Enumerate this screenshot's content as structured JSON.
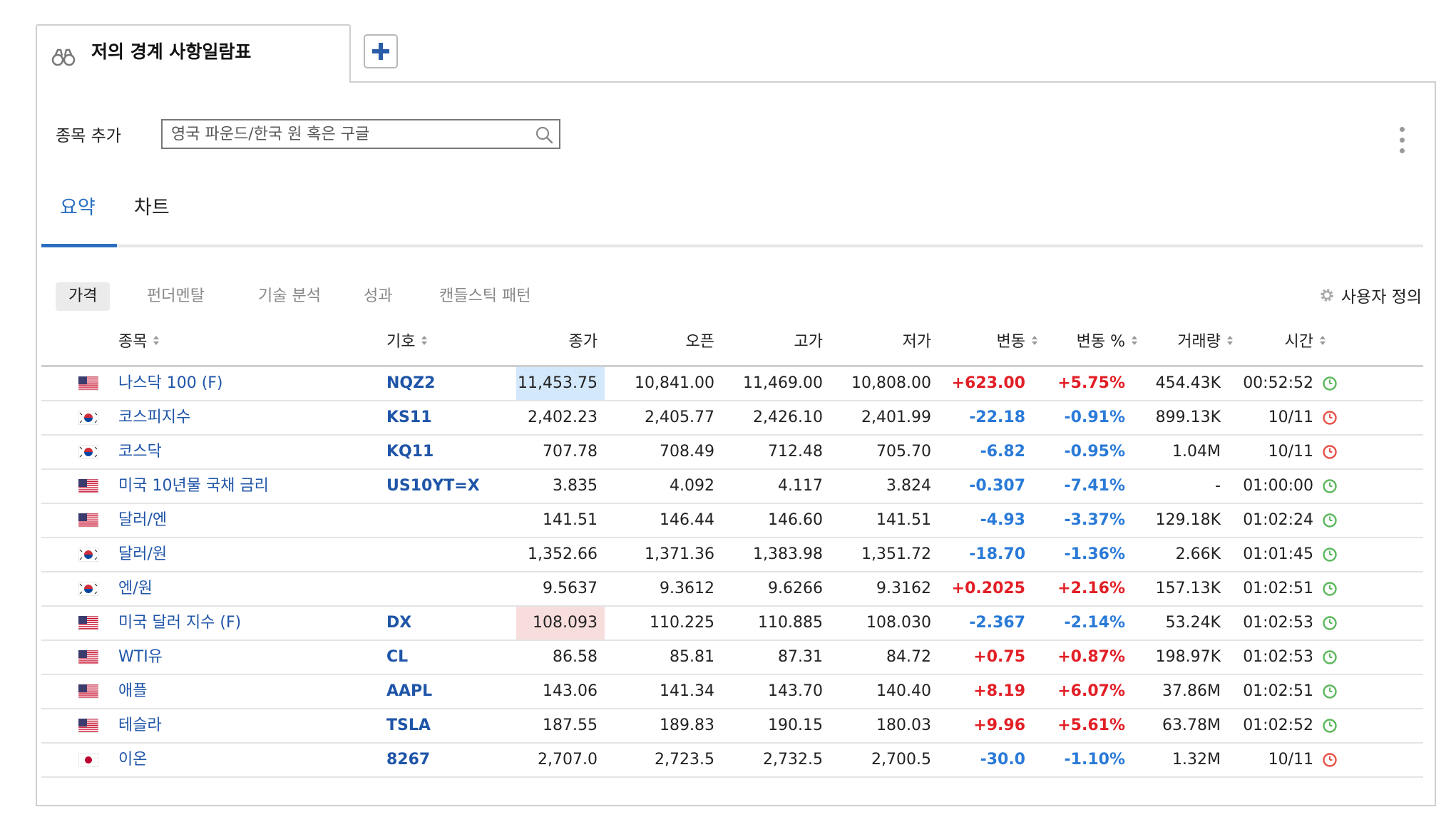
{
  "watchlist": {
    "tab_title": "저의 경계 사항일람표",
    "add_label": "종목 추가",
    "search_placeholder": "영국 파운드/한국 원 혹은 구글"
  },
  "main_tabs": [
    "요약",
    "차트"
  ],
  "sub_tabs": [
    "가격",
    "펀더멘탈",
    "기술 분석",
    "성과",
    "캔들스틱 패턴"
  ],
  "custom_label": "사용자 정의",
  "columns": {
    "name": "종목",
    "symbol": "기호",
    "close": "종가",
    "open": "오픈",
    "high": "고가",
    "low": "저가",
    "change": "변동",
    "change_pct": "변동 %",
    "volume": "거래량",
    "time": "시간"
  },
  "colors": {
    "accent": "#2a6ec0",
    "positive": "#e21f26",
    "negative": "#2a7ad8",
    "clock_green": "#5cb85c",
    "clock_red": "#e8534a"
  },
  "rows": [
    {
      "flag": "us",
      "name": "나스닥 100 (F)",
      "symbol": "NQZ2",
      "close": "11,453.75",
      "close_hl": "blue",
      "open": "10,841.00",
      "high": "11,469.00",
      "low": "10,808.00",
      "change": "+623.00",
      "change_pct": "+5.75%",
      "dir": "pos",
      "volume": "454.43K",
      "time": "00:52:52",
      "clock": "green"
    },
    {
      "flag": "kr",
      "name": "코스피지수",
      "symbol": "KS11",
      "close": "2,402.23",
      "close_hl": "",
      "open": "2,405.77",
      "high": "2,426.10",
      "low": "2,401.99",
      "change": "-22.18",
      "change_pct": "-0.91%",
      "dir": "neg",
      "volume": "899.13K",
      "time": "10/11",
      "clock": "red"
    },
    {
      "flag": "kr",
      "name": "코스닥",
      "symbol": "KQ11",
      "close": "707.78",
      "close_hl": "",
      "open": "708.49",
      "high": "712.48",
      "low": "705.70",
      "change": "-6.82",
      "change_pct": "-0.95%",
      "dir": "neg",
      "volume": "1.04M",
      "time": "10/11",
      "clock": "red"
    },
    {
      "flag": "us",
      "name": "미국 10년물 국채 금리",
      "symbol": "US10YT=X",
      "close": "3.835",
      "close_hl": "",
      "open": "4.092",
      "high": "4.117",
      "low": "3.824",
      "change": "-0.307",
      "change_pct": "-7.41%",
      "dir": "neg",
      "volume": "-",
      "time": "01:00:00",
      "clock": "green"
    },
    {
      "flag": "us",
      "name": "달러/엔",
      "symbol": "",
      "close": "141.51",
      "close_hl": "",
      "open": "146.44",
      "high": "146.60",
      "low": "141.51",
      "change": "-4.93",
      "change_pct": "-3.37%",
      "dir": "neg",
      "volume": "129.18K",
      "time": "01:02:24",
      "clock": "green"
    },
    {
      "flag": "kr",
      "name": "달러/원",
      "symbol": "",
      "close": "1,352.66",
      "close_hl": "",
      "open": "1,371.36",
      "high": "1,383.98",
      "low": "1,351.72",
      "change": "-18.70",
      "change_pct": "-1.36%",
      "dir": "neg",
      "volume": "2.66K",
      "time": "01:01:45",
      "clock": "green"
    },
    {
      "flag": "kr",
      "name": "엔/원",
      "symbol": "",
      "close": "9.5637",
      "close_hl": "",
      "open": "9.3612",
      "high": "9.6266",
      "low": "9.3162",
      "change": "+0.2025",
      "change_pct": "+2.16%",
      "dir": "pos",
      "volume": "157.13K",
      "time": "01:02:51",
      "clock": "green"
    },
    {
      "flag": "us",
      "name": "미국 달러 지수 (F)",
      "symbol": "DX",
      "close": "108.093",
      "close_hl": "red",
      "open": "110.225",
      "high": "110.885",
      "low": "108.030",
      "change": "-2.367",
      "change_pct": "-2.14%",
      "dir": "neg",
      "volume": "53.24K",
      "time": "01:02:53",
      "clock": "green"
    },
    {
      "flag": "us",
      "name": "WTI유",
      "symbol": "CL",
      "close": "86.58",
      "close_hl": "",
      "open": "85.81",
      "high": "87.31",
      "low": "84.72",
      "change": "+0.75",
      "change_pct": "+0.87%",
      "dir": "pos",
      "volume": "198.97K",
      "time": "01:02:53",
      "clock": "green"
    },
    {
      "flag": "us",
      "name": "애플",
      "symbol": "AAPL",
      "close": "143.06",
      "close_hl": "",
      "open": "141.34",
      "high": "143.70",
      "low": "140.40",
      "change": "+8.19",
      "change_pct": "+6.07%",
      "dir": "pos",
      "volume": "37.86M",
      "time": "01:02:51",
      "clock": "green"
    },
    {
      "flag": "us",
      "name": "테슬라",
      "symbol": "TSLA",
      "close": "187.55",
      "close_hl": "",
      "open": "189.83",
      "high": "190.15",
      "low": "180.03",
      "change": "+9.96",
      "change_pct": "+5.61%",
      "dir": "pos",
      "volume": "63.78M",
      "time": "01:02:52",
      "clock": "green"
    },
    {
      "flag": "jp",
      "name": "이온",
      "symbol": "8267",
      "close": "2,707.0",
      "close_hl": "",
      "open": "2,723.5",
      "high": "2,732.5",
      "low": "2,700.5",
      "change": "-30.0",
      "change_pct": "-1.10%",
      "dir": "neg",
      "volume": "1.32M",
      "time": "10/11",
      "clock": "red"
    }
  ]
}
